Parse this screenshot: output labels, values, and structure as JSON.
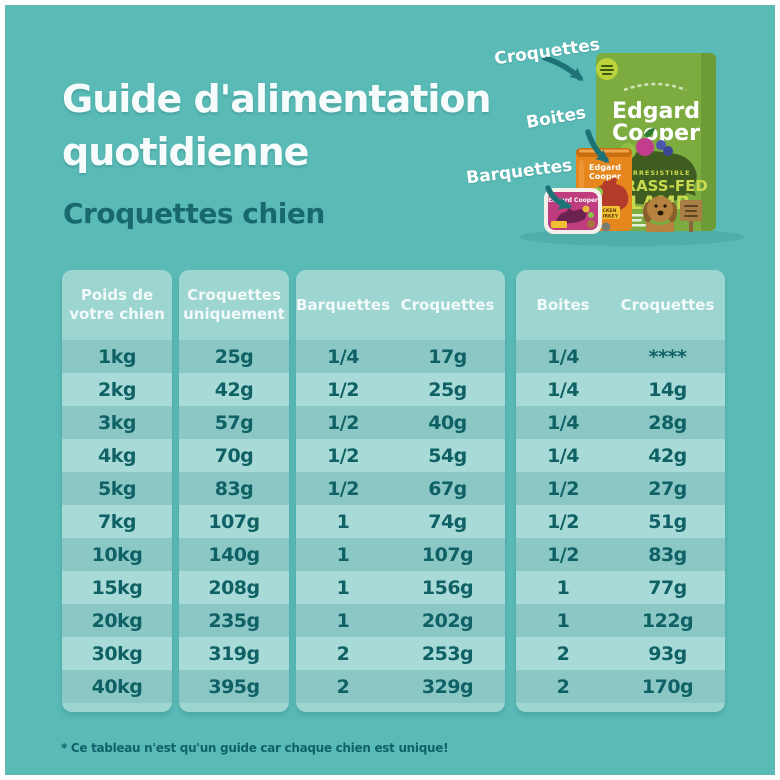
{
  "header": {
    "title_line1": "Guide d'alimentation",
    "title_line2": "quotidienne",
    "subtitle": "Croquettes chien"
  },
  "product_callouts": {
    "kibble_label": "Croquettes",
    "cans_label": "Boites",
    "trays_label": "Barquettes"
  },
  "products": {
    "bag_brand_line1": "Edgard",
    "bag_brand_line2": "Cooper",
    "bag_tagline": "IRRESISTIBLE",
    "bag_product_line1": "GRASS-FED",
    "bag_product_line2": "LAMB",
    "can_brand_line1": "Edgard",
    "can_brand_line2": "Cooper",
    "can_flavor_line1": "CHICKEN",
    "can_flavor_line2": "& TURKEY",
    "tray_brand": "Edgard Cooper"
  },
  "table": {
    "panels": {
      "weight": {
        "header_line1": "Poids de",
        "header_line2": "votre chien"
      },
      "kibble_only": {
        "header_line1": "Croquettes",
        "header_line2": "uniquement"
      },
      "trays": {
        "header_col1": "Barquettes",
        "header_col2": "Croquettes"
      },
      "cans": {
        "header_col1": "Boites",
        "header_col2": "Croquettes"
      }
    },
    "rows": [
      {
        "weight": "1kg",
        "kibble_only": "25g",
        "trays": "1/4",
        "trays_kibble": "17g",
        "cans": "1/4",
        "cans_kibble": "****"
      },
      {
        "weight": "2kg",
        "kibble_only": "42g",
        "trays": "1/2",
        "trays_kibble": "25g",
        "cans": "1/4",
        "cans_kibble": "14g"
      },
      {
        "weight": "3kg",
        "kibble_only": "57g",
        "trays": "1/2",
        "trays_kibble": "40g",
        "cans": "1/4",
        "cans_kibble": "28g"
      },
      {
        "weight": "4kg",
        "kibble_only": "70g",
        "trays": "1/2",
        "trays_kibble": "54g",
        "cans": "1/4",
        "cans_kibble": "42g"
      },
      {
        "weight": "5kg",
        "kibble_only": "83g",
        "trays": "1/2",
        "trays_kibble": "67g",
        "cans": "1/2",
        "cans_kibble": "27g"
      },
      {
        "weight": "7kg",
        "kibble_only": "107g",
        "trays": "1",
        "trays_kibble": "74g",
        "cans": "1/2",
        "cans_kibble": "51g"
      },
      {
        "weight": "10kg",
        "kibble_only": "140g",
        "trays": "1",
        "trays_kibble": "107g",
        "cans": "1/2",
        "cans_kibble": "83g"
      },
      {
        "weight": "15kg",
        "kibble_only": "208g",
        "trays": "1",
        "trays_kibble": "156g",
        "cans": "1",
        "cans_kibble": "77g"
      },
      {
        "weight": "20kg",
        "kibble_only": "235g",
        "trays": "1",
        "trays_kibble": "202g",
        "cans": "1",
        "cans_kibble": "122g"
      },
      {
        "weight": "30kg",
        "kibble_only": "319g",
        "trays": "2",
        "trays_kibble": "253g",
        "cans": "2",
        "cans_kibble": "93g"
      },
      {
        "weight": "40kg",
        "kibble_only": "395g",
        "trays": "2",
        "trays_kibble": "329g",
        "cans": "2",
        "cans_kibble": "170g"
      }
    ]
  },
  "footnote": "* Ce tableau n'est qu'un guide car chaque chien est unique!",
  "colors": {
    "background": "#5abab6",
    "panel": "#9dd5d1",
    "stripe_dark": "#8bc8c5",
    "stripe_light": "#a8dbd7",
    "text_dark": "#0f6165",
    "text_white": "#f6fcfb",
    "arrow": "#1d7276",
    "bag_green": "#7cab40",
    "can_orange": "#e5871d",
    "tray_pink": "#bf3d7e"
  }
}
